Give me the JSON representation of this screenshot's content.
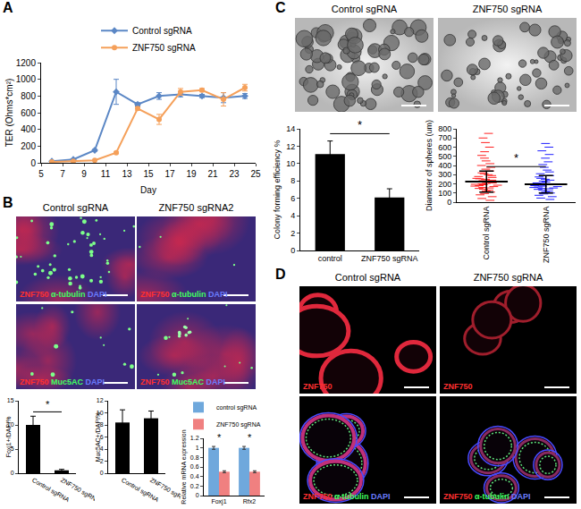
{
  "panel_labels": [
    "A",
    "B",
    "C",
    "D"
  ],
  "image_panels": [
    {
      "columns": [
        "Control sgRNA",
        "ZNF750 sgRNA2"
      ],
      "rows": [
        [
          {
            "text": "ZNF750",
            "color": "#ff3030"
          },
          {
            "text": "α-tubulin",
            "color": "#40ff60"
          },
          {
            "text": "DAPI",
            "color": "#6a7dff"
          }
        ],
        [
          {
            "text": "ZNF750",
            "color": "#ff3030"
          },
          {
            "text": "Muc5AC",
            "color": "#40ff60"
          },
          {
            "text": "DAPI",
            "color": "#6a7dff"
          }
        ]
      ]
    },
    {
      "columns": [
        "Control sgRNA",
        "ZNF750 sgRNA"
      ],
      "rows": [
        []
      ]
    },
    {
      "columns": [
        "Control sgRNA",
        "ZNF750 sgRNA"
      ],
      "rows": [
        [
          {
            "text": "ZNF750",
            "color": "#ff3030"
          }
        ],
        [
          {
            "text": "ZNF750",
            "color": "#ff3030"
          },
          {
            "text": "α-tubulin",
            "color": "#40ff60"
          },
          {
            "text": "DAPI",
            "color": "#6a7dff"
          }
        ]
      ]
    }
  ],
  "chart_data": [
    {
      "type": "line",
      "x": [
        6,
        8,
        10,
        12,
        14,
        16,
        18,
        20,
        22,
        24
      ],
      "series": [
        {
          "name": "Control sgRNA",
          "color": "#5b87c5",
          "marker": "diamond",
          "values": [
            20,
            40,
            150,
            850,
            700,
            800,
            820,
            800,
            780,
            800
          ],
          "errors": [
            5,
            5,
            10,
            150,
            20,
            40,
            30,
            20,
            60,
            30
          ]
        },
        {
          "name": "ZNF750 sgRNA",
          "color": "#f5a05a",
          "marker": "circle",
          "values": [
            10,
            20,
            30,
            120,
            650,
            520,
            850,
            870,
            760,
            900
          ],
          "errors": [
            5,
            5,
            5,
            10,
            20,
            60,
            40,
            20,
            80,
            40
          ]
        }
      ],
      "xlabel": "Day",
      "ylabel": "TER (Ohms*cm²)",
      "xlim": [
        5,
        25
      ],
      "xticks": [
        5,
        7,
        9,
        11,
        13,
        15,
        17,
        19,
        21,
        23,
        25
      ],
      "ylim": [
        0,
        1200
      ],
      "yticks": [
        0,
        200,
        400,
        600,
        800,
        1000,
        1200
      ],
      "legend": "top"
    },
    {
      "type": "bar",
      "categories": [
        "Control sgRNA",
        "ZNF750 sgRNA"
      ],
      "values": [
        10,
        0.6
      ],
      "errors": [
        1.8,
        0.2
      ],
      "color": "#000000",
      "ylabel": "Foxj1+/DAPI%",
      "ylim": [
        0,
        15
      ],
      "yticks": [
        0,
        5,
        10,
        15
      ],
      "annotations": [
        "*"
      ]
    },
    {
      "type": "bar",
      "categories": [
        "Control sgRNA",
        "ZNF750 sgRNA"
      ],
      "values": [
        8.4,
        9.1
      ],
      "errors": [
        2.1,
        1.2
      ],
      "color": "#000000",
      "ylabel": "Muc5AC+/DAPI%",
      "ylim": [
        0,
        12
      ],
      "yticks": [
        0,
        2,
        4,
        6,
        8,
        10,
        12
      ]
    },
    {
      "type": "bar",
      "categories": [
        "Foxj1",
        "Rfx2"
      ],
      "series": [
        {
          "name": "control sgRNA",
          "color": "#6fa8dc",
          "values": [
            1,
            1
          ],
          "errors": [
            0.03,
            0.03
          ]
        },
        {
          "name": "ZNF750 sgRNA",
          "color": "#f08080",
          "values": [
            0.5,
            0.5
          ],
          "errors": [
            0.02,
            0.02
          ]
        }
      ],
      "ylabel": "Relative mRNA expression",
      "ylim": [
        0,
        1.2
      ],
      "yticks": [
        0,
        0.2,
        0.4,
        0.6,
        0.8,
        1,
        1.2
      ],
      "legend": "top right",
      "annotations": [
        "*",
        "*"
      ]
    },
    {
      "type": "bar",
      "categories": [
        "control",
        "ZNF750 sgRNA"
      ],
      "values": [
        11.1,
        6.1
      ],
      "errors": [
        1.5,
        1.0
      ],
      "color": "#000000",
      "ylabel": "Colony forming efficiency %",
      "ylim": [
        0,
        14
      ],
      "yticks": [
        0,
        2,
        4,
        6,
        8,
        10,
        12,
        14
      ],
      "annotations": [
        "*"
      ]
    },
    {
      "type": "strip",
      "categories": [
        "Control sgRNA",
        "ZNF750 sgRNA"
      ],
      "values": [
        [
          20,
          40,
          60,
          80,
          95,
          110,
          120,
          130,
          140,
          150,
          155,
          160,
          170,
          175,
          180,
          185,
          190,
          195,
          200,
          205,
          210,
          215,
          220,
          225,
          230,
          235,
          240,
          250,
          255,
          260,
          270,
          280,
          290,
          300,
          310,
          320,
          340,
          360,
          380,
          400,
          420,
          450,
          480,
          510,
          550,
          600,
          650,
          700,
          750
        ],
        [
          30,
          45,
          60,
          75,
          90,
          100,
          110,
          120,
          130,
          140,
          145,
          150,
          155,
          160,
          165,
          170,
          175,
          180,
          185,
          190,
          195,
          200,
          205,
          210,
          220,
          230,
          240,
          250,
          260,
          275,
          290,
          310,
          330,
          350,
          380,
          410,
          440,
          480,
          520,
          560,
          600,
          640
        ]
      ],
      "colors": [
        "#ff2020",
        "#2020ff"
      ],
      "mean": [
        225,
        195
      ],
      "errors": [
        115,
        95
      ],
      "ylabel": "Diameter of spheres (um)",
      "ylim": [
        0,
        800
      ],
      "yticks": [
        0,
        100,
        200,
        300,
        400,
        500,
        600,
        700,
        800
      ],
      "annotations": [
        "*"
      ]
    }
  ]
}
